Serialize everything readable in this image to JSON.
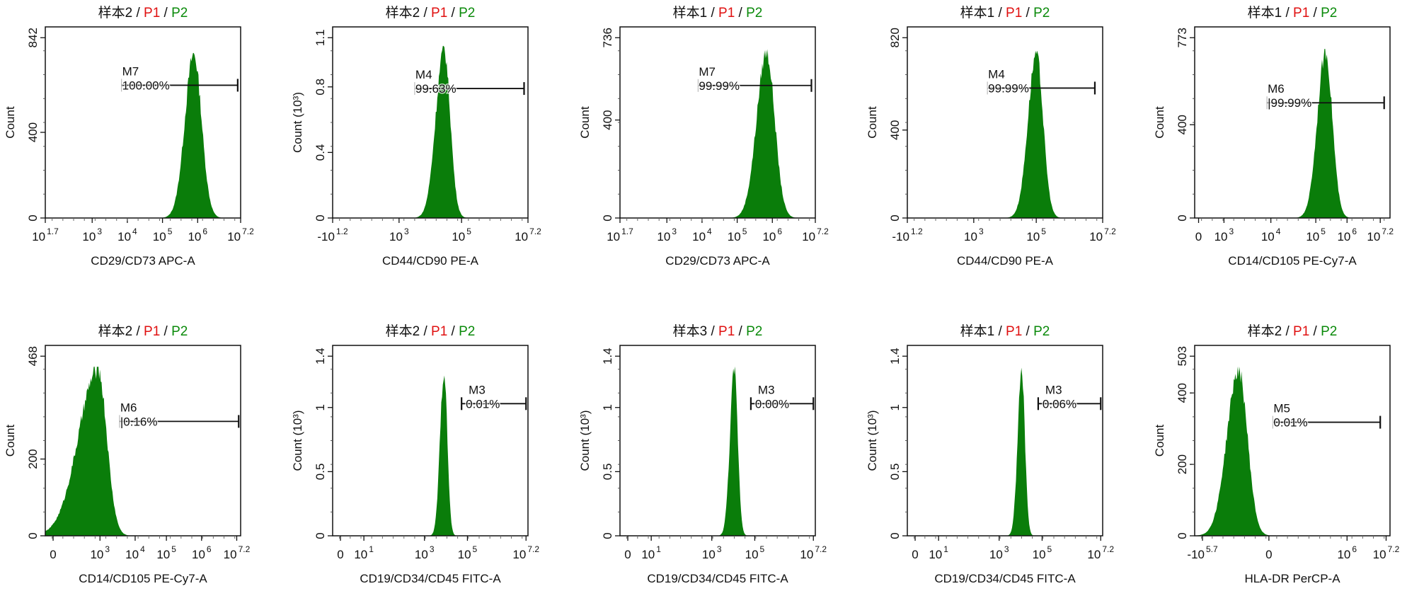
{
  "colors": {
    "fill": "#0a7d0a",
    "gate1": "#e01010",
    "gate2": "#0a8a0a",
    "text": "#111111"
  },
  "chart_data": [
    {
      "type": "histogram",
      "title": {
        "sample": "样本2",
        "gate1": "P1",
        "gate2": "P2"
      },
      "ylabel": "Count",
      "ymax": 842,
      "yticks": [
        {
          "v": 0,
          "label": "0"
        },
        {
          "v": 400,
          "label": "400"
        },
        {
          "v": 842,
          "label": "842"
        }
      ],
      "xlabel": "CD29/CD73 APC-A",
      "xlim": [
        0,
        10
      ],
      "xticks": [
        {
          "v": 0,
          "base": "10",
          "exp": "1.7"
        },
        {
          "v": 2.4,
          "base": "10",
          "exp": "3"
        },
        {
          "v": 4.2,
          "base": "10",
          "exp": "4"
        },
        {
          "v": 6.0,
          "base": "10",
          "exp": "5"
        },
        {
          "v": 7.8,
          "base": "10",
          "exp": "6"
        },
        {
          "v": 10,
          "base": "10",
          "exp": "7.2"
        }
      ],
      "peak": {
        "center": 7.6,
        "sd_left": 0.45,
        "sd_right": 0.4,
        "height": 780
      },
      "marker": {
        "name": "M7",
        "percent": "100.00%",
        "from": 3.9,
        "to": 9.85,
        "level": 620,
        "style": "right-cap"
      }
    },
    {
      "type": "histogram",
      "title": {
        "sample": "样本2",
        "gate1": "P1",
        "gate2": "P2"
      },
      "ylabel": "Count (10³)",
      "ymax": 1.1,
      "yticks": [
        {
          "v": 0,
          "label": "0"
        },
        {
          "v": 0.4,
          "label": "0.4"
        },
        {
          "v": 0.8,
          "label": "0.8"
        },
        {
          "v": 1.1,
          "label": "1.1"
        }
      ],
      "xlabel": "CD44/CD90 PE-A",
      "xlim": [
        0,
        10
      ],
      "xticks": [
        {
          "v": 0,
          "base": "-10",
          "exp": "1.2"
        },
        {
          "v": 3.4,
          "base": "10",
          "exp": "3"
        },
        {
          "v": 6.6,
          "base": "10",
          "exp": "5"
        },
        {
          "v": 10,
          "base": "10",
          "exp": "7.2"
        }
      ],
      "peak": {
        "center": 5.7,
        "sd_left": 0.42,
        "sd_right": 0.32,
        "height": 1.05
      },
      "marker": {
        "name": "M4",
        "percent": "99.63%",
        "from": 4.2,
        "to": 9.8,
        "level": 0.79,
        "style": "right-cap"
      }
    },
    {
      "type": "histogram",
      "title": {
        "sample": "样本1",
        "gate1": "P1",
        "gate2": "P2"
      },
      "ylabel": "Count",
      "ymax": 736,
      "yticks": [
        {
          "v": 0,
          "label": "0"
        },
        {
          "v": 400,
          "label": "400"
        },
        {
          "v": 736,
          "label": "736"
        }
      ],
      "xlabel": "CD29/CD73 APC-A",
      "xlim": [
        0,
        10
      ],
      "xticks": [
        {
          "v": 0,
          "base": "10",
          "exp": "1.7"
        },
        {
          "v": 2.4,
          "base": "10",
          "exp": "3"
        },
        {
          "v": 4.2,
          "base": "10",
          "exp": "4"
        },
        {
          "v": 6.0,
          "base": "10",
          "exp": "5"
        },
        {
          "v": 7.8,
          "base": "10",
          "exp": "6"
        },
        {
          "v": 10,
          "base": "10",
          "exp": "7.2"
        }
      ],
      "peak": {
        "center": 7.5,
        "sd_left": 0.5,
        "sd_right": 0.42,
        "height": 690
      },
      "marker": {
        "name": "M7",
        "percent": "99.99%",
        "from": 4.0,
        "to": 9.8,
        "level": 541,
        "style": "right-cap"
      }
    },
    {
      "type": "histogram",
      "title": {
        "sample": "样本1",
        "gate1": "P1",
        "gate2": "P2"
      },
      "ylabel": "Count",
      "ymax": 820,
      "yticks": [
        {
          "v": 0,
          "label": "0"
        },
        {
          "v": 400,
          "label": "400"
        },
        {
          "v": 820,
          "label": "820"
        }
      ],
      "xlabel": "CD44/CD90 PE-A",
      "xlim": [
        0,
        10
      ],
      "xticks": [
        {
          "v": 0,
          "base": "-10",
          "exp": "1.2"
        },
        {
          "v": 3.4,
          "base": "10",
          "exp": "3"
        },
        {
          "v": 6.6,
          "base": "10",
          "exp": "5"
        },
        {
          "v": 10,
          "base": "10",
          "exp": "7.2"
        }
      ],
      "peak": {
        "center": 6.6,
        "sd_left": 0.42,
        "sd_right": 0.35,
        "height": 761
      },
      "marker": {
        "name": "M4",
        "percent": "99.99%",
        "from": 4.1,
        "to": 9.6,
        "level": 591,
        "style": "right-cap"
      }
    },
    {
      "type": "histogram",
      "title": {
        "sample": "样本1",
        "gate1": "P1",
        "gate2": "P2"
      },
      "ylabel": "Count",
      "ymax": 773,
      "yticks": [
        {
          "v": 0,
          "label": "0"
        },
        {
          "v": 400,
          "label": "400"
        },
        {
          "v": 773,
          "label": "773"
        }
      ],
      "xlabel": "CD14/CD105 PE-Cy7-A",
      "xlim": [
        0,
        10
      ],
      "xticks": [
        {
          "v": 0.2,
          "base": "0",
          "exp": ""
        },
        {
          "v": 1.5,
          "base": "10",
          "exp": "3"
        },
        {
          "v": 3.9,
          "base": "10",
          "exp": "4"
        },
        {
          "v": 6.2,
          "base": "10",
          "exp": "5"
        },
        {
          "v": 7.8,
          "base": "10",
          "exp": "6"
        },
        {
          "v": 9.5,
          "base": "10",
          "exp": "7.2"
        }
      ],
      "peak": {
        "center": 6.7,
        "sd_left": 0.42,
        "sd_right": 0.35,
        "height": 725
      },
      "marker": {
        "name": "M6",
        "percent": "|99.99%",
        "from": 3.7,
        "to": 9.7,
        "level": 494,
        "style": "right-cap"
      }
    },
    {
      "type": "histogram",
      "title": {
        "sample": "样本2",
        "gate1": "P1",
        "gate2": "P2"
      },
      "ylabel": "Count",
      "ymax": 468,
      "yticks": [
        {
          "v": 0,
          "label": "0"
        },
        {
          "v": 200,
          "label": "200"
        },
        {
          "v": 468,
          "label": "468"
        }
      ],
      "xlabel": "CD14/CD105 PE-Cy7-A",
      "xlim": [
        0,
        10
      ],
      "xticks": [
        {
          "v": 0.4,
          "base": "0",
          "exp": ""
        },
        {
          "v": 2.8,
          "base": "10",
          "exp": "3"
        },
        {
          "v": 4.6,
          "base": "10",
          "exp": "4"
        },
        {
          "v": 6.2,
          "base": "10",
          "exp": "5"
        },
        {
          "v": 8.0,
          "base": "10",
          "exp": "6"
        },
        {
          "v": 9.8,
          "base": "10",
          "exp": "7.2"
        }
      ],
      "peak": {
        "center": 2.7,
        "sd_left": 1.0,
        "sd_right": 0.45,
        "height": 441
      },
      "marker": {
        "name": "M6",
        "percent": "|0.16%",
        "from": 3.8,
        "to": 9.9,
        "level": 298,
        "style": "right-cap"
      }
    },
    {
      "type": "histogram",
      "title": {
        "sample": "样本2",
        "gate1": "P1",
        "gate2": "P2"
      },
      "ylabel": "Count (10³)",
      "ymax": 1.4,
      "yticks": [
        {
          "v": 0,
          "label": "0"
        },
        {
          "v": 0.5,
          "label": "0.5"
        },
        {
          "v": 1,
          "label": "1"
        },
        {
          "v": 1.4,
          "label": "1.4"
        }
      ],
      "xlabel": "CD19/CD34/CD45 FITC-A",
      "xlim": [
        0,
        10
      ],
      "xticks": [
        {
          "v": 0.4,
          "base": "0",
          "exp": ""
        },
        {
          "v": 1.6,
          "base": "10",
          "exp": "1"
        },
        {
          "v": 4.7,
          "base": "10",
          "exp": "3"
        },
        {
          "v": 6.9,
          "base": "10",
          "exp": "5"
        },
        {
          "v": 9.9,
          "base": "10",
          "exp": "7.2"
        }
      ],
      "peak": {
        "center": 5.7,
        "sd_left": 0.2,
        "sd_right": 0.17,
        "height": 1.31
      },
      "marker": {
        "name": "M3",
        "percent": "0.01%",
        "from": 6.6,
        "to": 9.9,
        "level": 1.03,
        "style": "both-caps"
      }
    },
    {
      "type": "histogram",
      "title": {
        "sample": "样本3",
        "gate1": "P1",
        "gate2": "P2"
      },
      "ylabel": "Count (10³)",
      "ymax": 1.4,
      "yticks": [
        {
          "v": 0,
          "label": "0"
        },
        {
          "v": 0.5,
          "label": "0.5"
        },
        {
          "v": 1,
          "label": "1"
        },
        {
          "v": 1.4,
          "label": "1.4"
        }
      ],
      "xlabel": "CD19/CD34/CD45 FITC-A",
      "xlim": [
        0,
        10
      ],
      "xticks": [
        {
          "v": 0.4,
          "base": "0",
          "exp": ""
        },
        {
          "v": 1.6,
          "base": "10",
          "exp": "1"
        },
        {
          "v": 4.7,
          "base": "10",
          "exp": "3"
        },
        {
          "v": 6.9,
          "base": "10",
          "exp": "5"
        },
        {
          "v": 9.9,
          "base": "10",
          "exp": "7.2"
        }
      ],
      "peak": {
        "center": 5.85,
        "sd_left": 0.22,
        "sd_right": 0.18,
        "height": 1.32
      },
      "marker": {
        "name": "M3",
        "percent": "0.00%",
        "from": 6.7,
        "to": 9.9,
        "level": 1.03,
        "style": "both-caps"
      }
    },
    {
      "type": "histogram",
      "title": {
        "sample": "样本1",
        "gate1": "P1",
        "gate2": "P2"
      },
      "ylabel": "Count (10³)",
      "ymax": 1.4,
      "yticks": [
        {
          "v": 0,
          "label": "0"
        },
        {
          "v": 0.5,
          "label": "0.5"
        },
        {
          "v": 1,
          "label": "1"
        },
        {
          "v": 1.4,
          "label": "1.4"
        }
      ],
      "xlabel": "CD19/CD34/CD45 FITC-A",
      "xlim": [
        0,
        10
      ],
      "xticks": [
        {
          "v": 0.4,
          "base": "0",
          "exp": ""
        },
        {
          "v": 1.6,
          "base": "10",
          "exp": "1"
        },
        {
          "v": 4.7,
          "base": "10",
          "exp": "3"
        },
        {
          "v": 6.9,
          "base": "10",
          "exp": "5"
        },
        {
          "v": 9.9,
          "base": "10",
          "exp": "7.2"
        }
      ],
      "peak": {
        "center": 5.85,
        "sd_left": 0.2,
        "sd_right": 0.17,
        "height": 1.31
      },
      "marker": {
        "name": "M3",
        "percent": "0.06%",
        "from": 6.7,
        "to": 9.9,
        "level": 1.03,
        "style": "both-caps"
      }
    },
    {
      "type": "histogram",
      "title": {
        "sample": "样本2",
        "gate1": "P1",
        "gate2": "P2"
      },
      "ylabel": "Count",
      "ymax": 503,
      "yticks": [
        {
          "v": 0,
          "label": "0"
        },
        {
          "v": 200,
          "label": "200"
        },
        {
          "v": 400,
          "label": "400"
        },
        {
          "v": 503,
          "label": "503"
        }
      ],
      "xlabel": "HLA-DR PerCP-A",
      "xlim": [
        0,
        10
      ],
      "xticks": [
        {
          "v": 0.4,
          "base": "-10",
          "exp": "5.7"
        },
        {
          "v": 3.8,
          "base": "0",
          "exp": ""
        },
        {
          "v": 7.8,
          "base": "10",
          "exp": "6"
        },
        {
          "v": 9.8,
          "base": "10",
          "exp": "7.2"
        }
      ],
      "peak": {
        "center": 2.25,
        "sd_left": 0.6,
        "sd_right": 0.45,
        "height": 474
      },
      "marker": {
        "name": "M5",
        "percent": "0.01%",
        "from": 4.0,
        "to": 9.5,
        "level": 318,
        "style": "right-cap"
      }
    }
  ]
}
